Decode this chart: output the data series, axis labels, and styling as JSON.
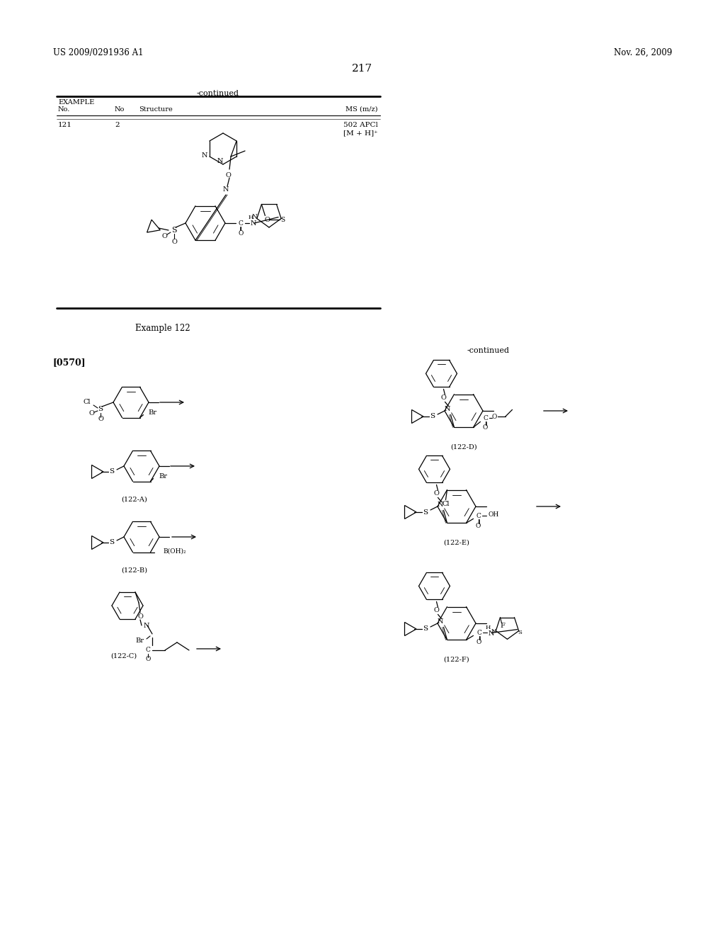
{
  "bg_color": "#ffffff",
  "page_width": 10.24,
  "page_height": 13.2,
  "header_left": "US 2009/0291936 A1",
  "header_right": "Nov. 26, 2009",
  "page_number": "217",
  "table_title": "-continued",
  "col1": "EXAMPLE\nNo.",
  "col2": "No",
  "col3": "Structure",
  "col4": "MS (m/z)",
  "row_no": "121",
  "row_stereo": "2",
  "row_ms1": "502 APCl",
  "row_ms2": "[M + H]⁺",
  "example_label": "Example 122",
  "para_label": "[0570]",
  "continued_right": "-continued",
  "lbl_A": "(122-A)",
  "lbl_B": "(122-B)",
  "lbl_C": "(122-C)",
  "lbl_D": "(122-D)",
  "lbl_E": "(122-E)",
  "lbl_F": "(122-F)"
}
